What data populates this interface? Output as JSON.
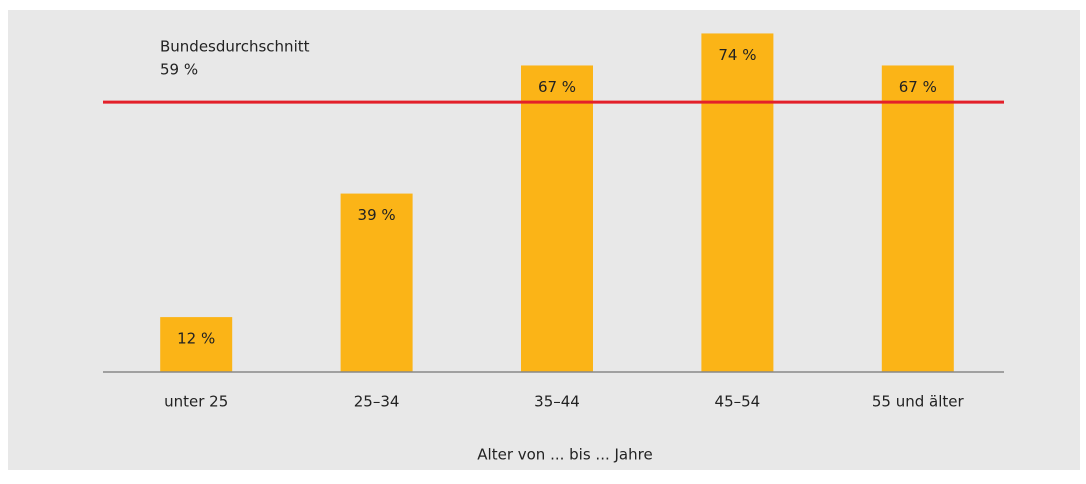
{
  "chart_data": {
    "type": "bar",
    "categories": [
      "unter 25",
      "25–34",
      "35–44",
      "45–54",
      "55 und älter"
    ],
    "values": [
      12,
      39,
      67,
      74,
      67
    ],
    "value_labels": [
      "12 %",
      "39 %",
      "67 %",
      "74 %",
      "67 %"
    ],
    "color": "#fbb417",
    "x_label": "Alter von ... bis ... Jahre",
    "ylim": [
      0,
      80
    ],
    "reference_line": {
      "value": 59,
      "label": "Bundesdurchschnitt",
      "value_label": "59 %",
      "color": "#e3202a"
    }
  }
}
